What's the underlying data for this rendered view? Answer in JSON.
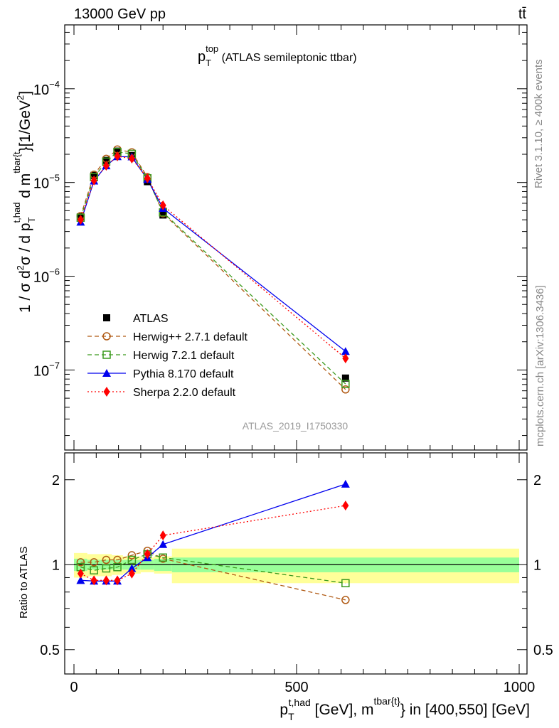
{
  "header": {
    "left": "13000 GeV pp",
    "right": "tt̄"
  },
  "side": {
    "rivet": "Rivet 3.1.10, ≥ 400k events",
    "mcplots": "mcplots.cern.ch [arXiv:1306.3436]"
  },
  "watermark": "ATLAS_2019_I1750330",
  "colors": {
    "atlas": "#000000",
    "herwigpp": "#b05a14",
    "herwig7": "#3c9a1e",
    "pythia": "#0000ee",
    "sherpa": "#ff0000",
    "band_total": "#ffff99",
    "band_stat": "#99ff99"
  },
  "chart_data": [
    {
      "type": "line",
      "title": {
        "main": "p",
        "sup": "top",
        "sub": "T",
        "rest": " (ATLAS semileptonic ttbar)"
      },
      "ylabel": "1 / σ d²σ / d p_T^{t,had} d m^{tbar{t}} [1/GeV²]",
      "ylabel_parts": {
        "a": "1 / σ d",
        "b": "2",
        "c": "σ / d p",
        "d": "t,had",
        "e": "T",
        "f": " d m",
        "g": "tbar{t",
        "h": "}[1/GeV",
        "i": "2",
        "j": "]"
      },
      "yscale": "log",
      "ylim": [
        1.4e-08,
        0.00048
      ],
      "xlim": [
        -20,
        1010
      ],
      "yticks": [
        {
          "v": 1e-07,
          "base": "10",
          "exp": "−7"
        },
        {
          "v": 1e-06,
          "base": "10",
          "exp": "−6"
        },
        {
          "v": 1e-05,
          "base": "10",
          "exp": "−5"
        },
        {
          "v": 0.0001,
          "base": "10",
          "exp": "−4"
        }
      ],
      "x": [
        15,
        45,
        72.5,
        97.5,
        130,
        165,
        200,
        610
      ],
      "legend_position": "bottom-left",
      "series": [
        {
          "name": "ATLAS",
          "key": "atlas",
          "marker": "square-filled",
          "line": "none",
          "values": [
            4.3e-06,
            1.19e-05,
            1.72e-05,
            2.16e-05,
            1.94e-05,
            1.02e-05,
            4.5e-06,
            8.2e-08
          ]
        },
        {
          "name": "Herwig++ 2.7.1 default",
          "key": "herwigpp",
          "marker": "circle-open",
          "line": "dashed",
          "values": [
            4.39e-06,
            1.21e-05,
            1.79e-05,
            2.25e-05,
            2.1e-05,
            1.14e-05,
            4.7e-06,
            6.2e-08
          ]
        },
        {
          "name": "Herwig 7.2.1 default",
          "key": "herwig7",
          "marker": "square-open",
          "line": "dashed",
          "values": [
            4.21e-06,
            1.14e-05,
            1.67e-05,
            2.12e-05,
            2.02e-05,
            1.11e-05,
            4.8e-06,
            7.1e-08
          ]
        },
        {
          "name": "Pythia 8.170 default",
          "key": "pythia",
          "marker": "triangle-filled",
          "line": "solid",
          "values": [
            3.78e-06,
            1.04e-05,
            1.51e-05,
            1.89e-05,
            1.88e-05,
            1.08e-05,
            5.3e-06,
            1.58e-07
          ]
        },
        {
          "name": "Sherpa 2.2.0 default",
          "key": "sherpa",
          "marker": "diamond-filled",
          "line": "dotted",
          "values": [
            4e-06,
            1.05e-05,
            1.51e-05,
            1.9e-05,
            1.8e-05,
            1.11e-05,
            5.7e-06,
            1.33e-07
          ]
        }
      ]
    },
    {
      "type": "line",
      "ylabel": "Ratio to ATLAS",
      "yscale": "log",
      "ylim": [
        0.41,
        2.49
      ],
      "xlim": [
        -20,
        1010
      ],
      "yticks": [
        {
          "v": 0.5,
          "label": "0.5"
        },
        {
          "v": 1,
          "label": "1"
        },
        {
          "v": 2,
          "label": "2"
        }
      ],
      "xticks": [
        {
          "v": 0,
          "label": "0"
        },
        {
          "v": 500,
          "label": "500"
        },
        {
          "v": 1000,
          "label": "1000"
        }
      ],
      "xlabel": {
        "a": "p",
        "b": "t,had",
        "c": "T",
        "d": " [GeV], m",
        "e": "tbar{t}",
        "f": "} in [400,550] [GeV]"
      },
      "bins": [
        0,
        30,
        60,
        85,
        110,
        150,
        180,
        220,
        1000
      ],
      "band_total": [
        0.1,
        0.09,
        0.09,
        0.08,
        0.07,
        0.06,
        0.07,
        0.14
      ],
      "band_stat": [
        0.05,
        0.04,
        0.04,
        0.04,
        0.04,
        0.04,
        0.05,
        0.06
      ],
      "x": [
        15,
        45,
        72.5,
        97.5,
        130,
        165,
        200,
        610
      ],
      "series": [
        {
          "name": "Herwig++ 2.7.1 default",
          "key": "herwigpp",
          "marker": "circle-open",
          "line": "dashed",
          "values": [
            1.02,
            1.02,
            1.04,
            1.04,
            1.08,
            1.12,
            1.05,
            0.75
          ]
        },
        {
          "name": "Herwig 7.2.1 default",
          "key": "herwig7",
          "marker": "square-open",
          "line": "dashed",
          "values": [
            0.98,
            0.955,
            0.97,
            0.98,
            1.04,
            1.09,
            1.06,
            0.86
          ]
        },
        {
          "name": "Pythia 8.170 default",
          "key": "pythia",
          "marker": "triangle-filled",
          "line": "solid",
          "values": [
            0.88,
            0.875,
            0.875,
            0.875,
            0.97,
            1.06,
            1.18,
            1.93
          ]
        },
        {
          "name": "Sherpa 2.2.0 default",
          "key": "sherpa",
          "marker": "diamond-filled",
          "line": "dotted",
          "values": [
            0.93,
            0.88,
            0.88,
            0.88,
            0.93,
            1.09,
            1.27,
            1.62
          ]
        }
      ]
    }
  ]
}
